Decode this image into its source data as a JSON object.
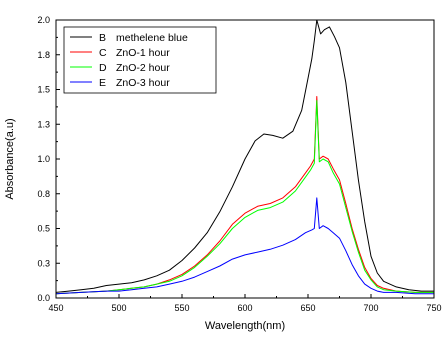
{
  "chart_data": {
    "type": "line",
    "title": "",
    "xlabel": "Wavelength(nm)",
    "ylabel": "Absorbance(a.u)",
    "xlim": [
      450,
      750
    ],
    "ylim": [
      0.0,
      2.0
    ],
    "x_ticks": [
      "450",
      "500",
      "550",
      "600",
      "650",
      "700",
      "750"
    ],
    "y_ticks": [
      "0.0",
      "0.3",
      "0.5",
      "0.8",
      "1.0",
      "1.3",
      "1.5",
      "1.8",
      "2.0"
    ],
    "grid": false,
    "legend_position": "top-left",
    "series": [
      {
        "key": "B",
        "name": "methelene blue",
        "color": "#000000",
        "points": [
          [
            450,
            0.04
          ],
          [
            460,
            0.05
          ],
          [
            470,
            0.06
          ],
          [
            480,
            0.07
          ],
          [
            490,
            0.09
          ],
          [
            500,
            0.1
          ],
          [
            510,
            0.11
          ],
          [
            520,
            0.13
          ],
          [
            530,
            0.16
          ],
          [
            540,
            0.2
          ],
          [
            550,
            0.27
          ],
          [
            560,
            0.36
          ],
          [
            570,
            0.47
          ],
          [
            580,
            0.62
          ],
          [
            590,
            0.8
          ],
          [
            600,
            1.0
          ],
          [
            608,
            1.13
          ],
          [
            615,
            1.18
          ],
          [
            622,
            1.17
          ],
          [
            630,
            1.15
          ],
          [
            638,
            1.2
          ],
          [
            645,
            1.35
          ],
          [
            650,
            1.58
          ],
          [
            653,
            1.72
          ],
          [
            655,
            1.85
          ],
          [
            657,
            2.0
          ],
          [
            660,
            1.9
          ],
          [
            663,
            1.93
          ],
          [
            667,
            1.95
          ],
          [
            671,
            1.88
          ],
          [
            675,
            1.8
          ],
          [
            680,
            1.55
          ],
          [
            685,
            1.2
          ],
          [
            690,
            0.85
          ],
          [
            695,
            0.55
          ],
          [
            700,
            0.3
          ],
          [
            705,
            0.18
          ],
          [
            710,
            0.12
          ],
          [
            720,
            0.08
          ],
          [
            730,
            0.06
          ],
          [
            740,
            0.05
          ],
          [
            750,
            0.05
          ]
        ]
      },
      {
        "key": "C",
        "name": "ZnO-1 hour",
        "color": "#ff0000",
        "points": [
          [
            450,
            0.03
          ],
          [
            470,
            0.04
          ],
          [
            490,
            0.05
          ],
          [
            500,
            0.06
          ],
          [
            510,
            0.07
          ],
          [
            520,
            0.08
          ],
          [
            530,
            0.1
          ],
          [
            540,
            0.13
          ],
          [
            550,
            0.17
          ],
          [
            560,
            0.23
          ],
          [
            570,
            0.31
          ],
          [
            580,
            0.41
          ],
          [
            590,
            0.53
          ],
          [
            600,
            0.61
          ],
          [
            610,
            0.66
          ],
          [
            620,
            0.68
          ],
          [
            630,
            0.72
          ],
          [
            640,
            0.8
          ],
          [
            648,
            0.9
          ],
          [
            652,
            0.95
          ],
          [
            655,
            1.0
          ],
          [
            657,
            1.45
          ],
          [
            659,
            1.0
          ],
          [
            662,
            1.02
          ],
          [
            666,
            1.0
          ],
          [
            670,
            0.93
          ],
          [
            675,
            0.85
          ],
          [
            680,
            0.68
          ],
          [
            685,
            0.5
          ],
          [
            690,
            0.35
          ],
          [
            695,
            0.22
          ],
          [
            700,
            0.14
          ],
          [
            705,
            0.09
          ],
          [
            710,
            0.07
          ],
          [
            720,
            0.05
          ],
          [
            735,
            0.04
          ],
          [
            750,
            0.04
          ]
        ]
      },
      {
        "key": "D",
        "name": "ZnO-2 hour",
        "color": "#00ff00",
        "points": [
          [
            450,
            0.03
          ],
          [
            470,
            0.04
          ],
          [
            490,
            0.05
          ],
          [
            500,
            0.06
          ],
          [
            510,
            0.07
          ],
          [
            520,
            0.08
          ],
          [
            530,
            0.1
          ],
          [
            540,
            0.12
          ],
          [
            550,
            0.16
          ],
          [
            560,
            0.22
          ],
          [
            570,
            0.3
          ],
          [
            580,
            0.39
          ],
          [
            590,
            0.5
          ],
          [
            600,
            0.58
          ],
          [
            610,
            0.63
          ],
          [
            620,
            0.65
          ],
          [
            630,
            0.69
          ],
          [
            640,
            0.77
          ],
          [
            648,
            0.87
          ],
          [
            652,
            0.92
          ],
          [
            655,
            0.97
          ],
          [
            657,
            1.42
          ],
          [
            659,
            0.98
          ],
          [
            662,
            1.0
          ],
          [
            666,
            0.98
          ],
          [
            670,
            0.9
          ],
          [
            675,
            0.82
          ],
          [
            680,
            0.65
          ],
          [
            685,
            0.48
          ],
          [
            690,
            0.33
          ],
          [
            695,
            0.2
          ],
          [
            700,
            0.13
          ],
          [
            705,
            0.08
          ],
          [
            710,
            0.06
          ],
          [
            720,
            0.05
          ],
          [
            735,
            0.04
          ],
          [
            750,
            0.04
          ]
        ]
      },
      {
        "key": "E",
        "name": "ZnO-3 hour",
        "color": "#0000ff",
        "points": [
          [
            450,
            0.03
          ],
          [
            470,
            0.04
          ],
          [
            490,
            0.05
          ],
          [
            500,
            0.05
          ],
          [
            510,
            0.06
          ],
          [
            520,
            0.07
          ],
          [
            530,
            0.08
          ],
          [
            540,
            0.1
          ],
          [
            550,
            0.12
          ],
          [
            560,
            0.15
          ],
          [
            570,
            0.19
          ],
          [
            580,
            0.23
          ],
          [
            590,
            0.28
          ],
          [
            600,
            0.31
          ],
          [
            610,
            0.33
          ],
          [
            620,
            0.35
          ],
          [
            630,
            0.38
          ],
          [
            640,
            0.42
          ],
          [
            648,
            0.47
          ],
          [
            653,
            0.49
          ],
          [
            655,
            0.5
          ],
          [
            657,
            0.72
          ],
          [
            659,
            0.5
          ],
          [
            662,
            0.52
          ],
          [
            666,
            0.5
          ],
          [
            670,
            0.47
          ],
          [
            675,
            0.43
          ],
          [
            680,
            0.34
          ],
          [
            685,
            0.24
          ],
          [
            690,
            0.16
          ],
          [
            695,
            0.1
          ],
          [
            700,
            0.07
          ],
          [
            705,
            0.05
          ],
          [
            710,
            0.04
          ],
          [
            720,
            0.04
          ],
          [
            735,
            0.03
          ],
          [
            750,
            0.03
          ]
        ]
      }
    ]
  }
}
